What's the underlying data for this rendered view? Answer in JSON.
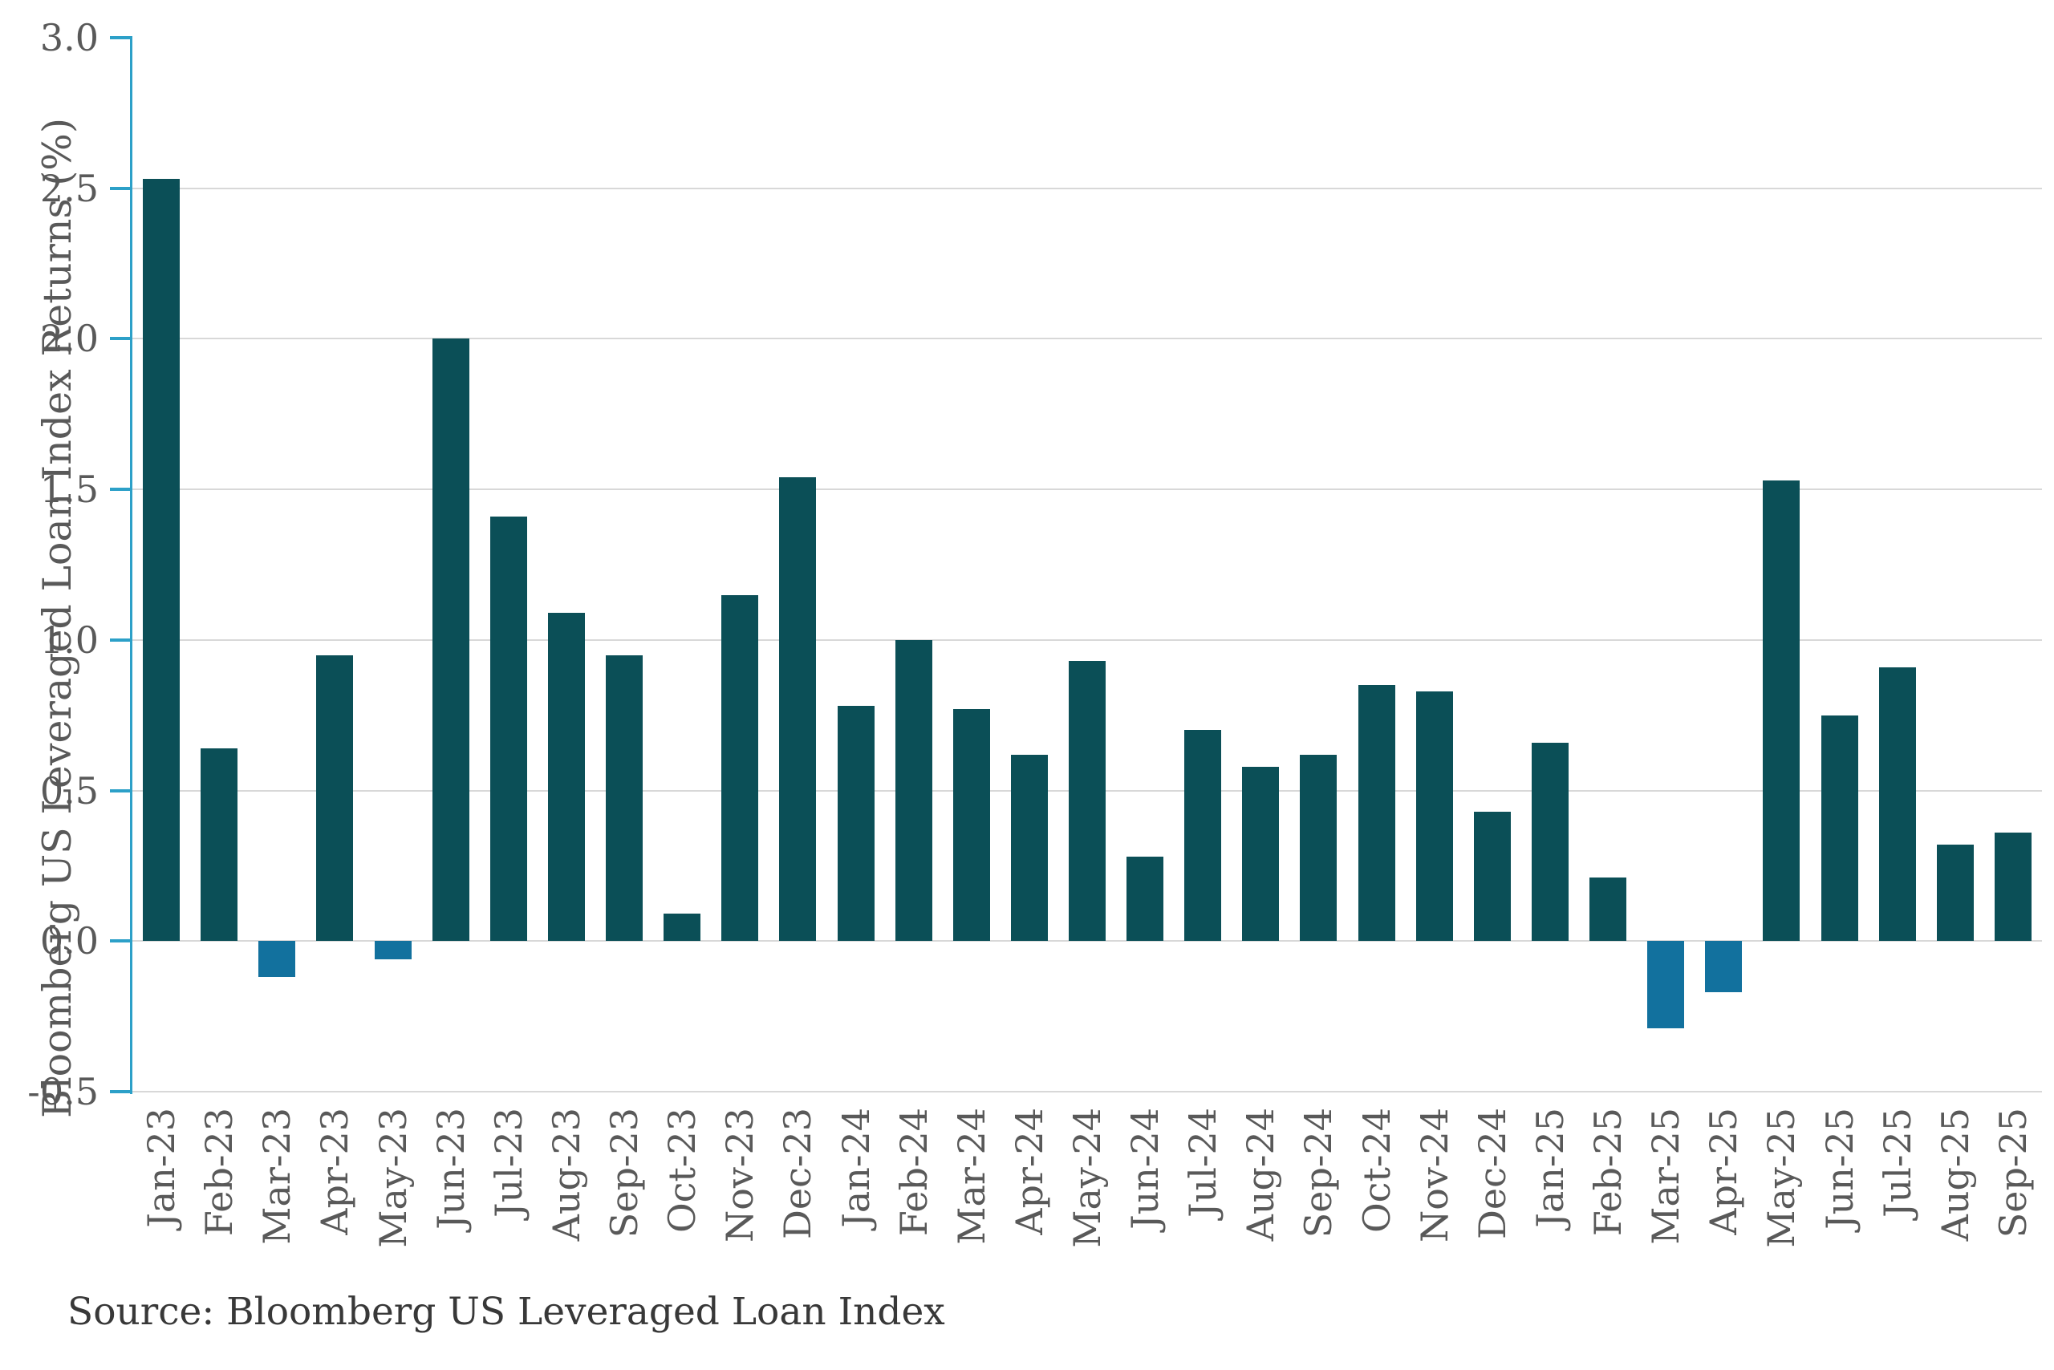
{
  "chart_data": {
    "type": "bar",
    "categories": [
      "Jan-23",
      "Feb-23",
      "Mar-23",
      "Apr-23",
      "May-23",
      "Jun-23",
      "Jul-23",
      "Aug-23",
      "Sep-23",
      "Oct-23",
      "Nov-23",
      "Dec-23",
      "Jan-24",
      "Feb-24",
      "Mar-24",
      "Apr-24",
      "May-24",
      "Jun-24",
      "Jul-24",
      "Aug-24",
      "Sep-24",
      "Oct-24",
      "Nov-24",
      "Dec-24",
      "Jan-25",
      "Feb-25",
      "Mar-25",
      "Apr-25",
      "May-25",
      "Jun-25",
      "Jul-25",
      "Aug-25",
      "Sep-25"
    ],
    "values": [
      2.53,
      0.64,
      -0.12,
      0.95,
      -0.06,
      2.0,
      1.41,
      1.09,
      0.95,
      0.09,
      1.15,
      1.54,
      0.78,
      1.0,
      0.77,
      0.62,
      0.93,
      0.28,
      0.7,
      0.58,
      0.62,
      0.85,
      0.83,
      0.43,
      0.66,
      0.21,
      -0.29,
      -0.17,
      1.53,
      0.75,
      0.91,
      0.32,
      0.36
    ],
    "title": "",
    "xlabel": "",
    "ylabel": "Bloomberg US Leveraged Loan Index Returns (%)",
    "ylim": [
      -0.5,
      3.0
    ],
    "yticks": [
      3.0,
      2.5,
      2.0,
      1.5,
      1.0,
      0.5,
      0.0,
      -0.5
    ],
    "ytick_labels": [
      "3.0",
      "2.5",
      "2.0",
      "1.5",
      "1.0",
      "0.5",
      "0.0",
      "-0.5"
    ],
    "grid": true,
    "legend": false
  },
  "source_note": "Source: Bloomberg US Leveraged Loan Index",
  "colors": {
    "positive_bar": "#0b4f57",
    "negative_bar": "#12719e",
    "axis_line": "#2ca0c8",
    "gridline": "#d8d8d8",
    "tick_label": "#595959",
    "axis_title": "#595959",
    "source_text": "#383838",
    "background": "#ffffff"
  }
}
